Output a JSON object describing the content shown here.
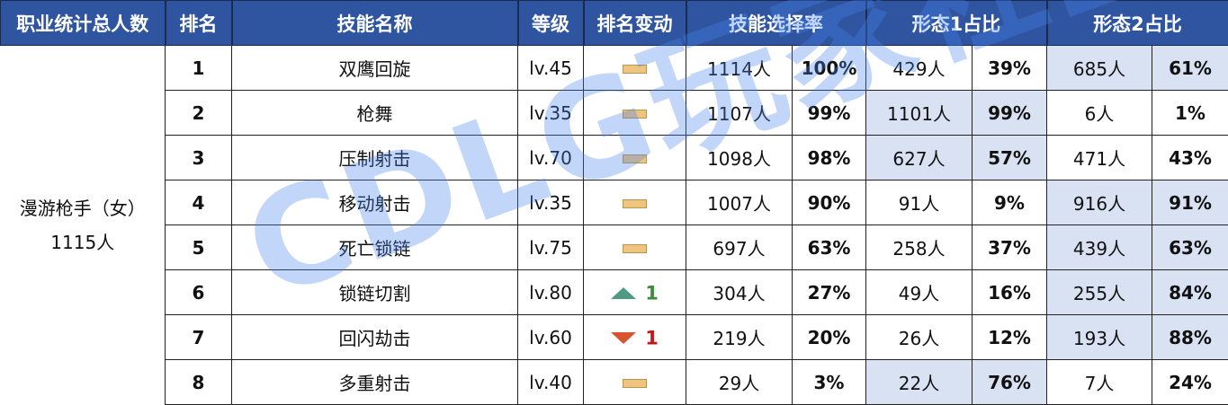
{
  "headers": {
    "job_total": "职业统计总人数",
    "rank": "排名",
    "skill_name": "技能名称",
    "level": "等级",
    "rank_change": "排名变动",
    "select_rate": "技能选择率",
    "form1": "形态1占比",
    "form2": "形态2占比"
  },
  "job": {
    "name": "漫游枪手（女）",
    "total": "1115人"
  },
  "rows": [
    {
      "rank": "1",
      "skill": "双鹰回旋",
      "level": "lv.45",
      "change": {
        "type": "flat",
        "value": ""
      },
      "count": "1114人",
      "rate": "100%",
      "f1_count": "429人",
      "f1_pct": "39%",
      "f2_count": "685人",
      "f2_pct": "61%",
      "highlight": "form2"
    },
    {
      "rank": "2",
      "skill": "枪舞",
      "level": "lv.35",
      "change": {
        "type": "flat",
        "value": ""
      },
      "count": "1107人",
      "rate": "99%",
      "f1_count": "1101人",
      "f1_pct": "99%",
      "f2_count": "6人",
      "f2_pct": "1%",
      "highlight": "form1"
    },
    {
      "rank": "3",
      "skill": "压制射击",
      "level": "lv.70",
      "change": {
        "type": "flat",
        "value": ""
      },
      "count": "1098人",
      "rate": "98%",
      "f1_count": "627人",
      "f1_pct": "57%",
      "f2_count": "471人",
      "f2_pct": "43%",
      "highlight": "form1"
    },
    {
      "rank": "4",
      "skill": "移动射击",
      "level": "lv.35",
      "change": {
        "type": "flat",
        "value": ""
      },
      "count": "1007人",
      "rate": "90%",
      "f1_count": "91人",
      "f1_pct": "9%",
      "f2_count": "916人",
      "f2_pct": "91%",
      "highlight": "form2"
    },
    {
      "rank": "5",
      "skill": "死亡锁链",
      "level": "lv.75",
      "change": {
        "type": "flat",
        "value": ""
      },
      "count": "697人",
      "rate": "63%",
      "f1_count": "258人",
      "f1_pct": "37%",
      "f2_count": "439人",
      "f2_pct": "63%",
      "highlight": "form2"
    },
    {
      "rank": "6",
      "skill": "锁链切割",
      "level": "lv.80",
      "change": {
        "type": "up",
        "value": "1"
      },
      "count": "304人",
      "rate": "27%",
      "f1_count": "49人",
      "f1_pct": "16%",
      "f2_count": "255人",
      "f2_pct": "84%",
      "highlight": "form2"
    },
    {
      "rank": "7",
      "skill": "回闪劫击",
      "level": "lv.60",
      "change": {
        "type": "down",
        "value": "1"
      },
      "count": "219人",
      "rate": "20%",
      "f1_count": "26人",
      "f1_pct": "12%",
      "f2_count": "193人",
      "f2_pct": "88%",
      "highlight": "form2"
    },
    {
      "rank": "8",
      "skill": "多重射击",
      "level": "lv.40",
      "change": {
        "type": "flat",
        "value": ""
      },
      "count": "29人",
      "rate": "3%",
      "f1_count": "22人",
      "f1_pct": "76%",
      "f2_count": "7人",
      "f2_pct": "24%",
      "highlight": "form1"
    }
  ],
  "colors": {
    "header_bg": "#2f55a0",
    "highlight_bg": "#d9e2f3",
    "up": "#4e9a82",
    "down": "#d9542c",
    "flat": "#efc47f"
  },
  "watermark": "CDLG玩家社区"
}
